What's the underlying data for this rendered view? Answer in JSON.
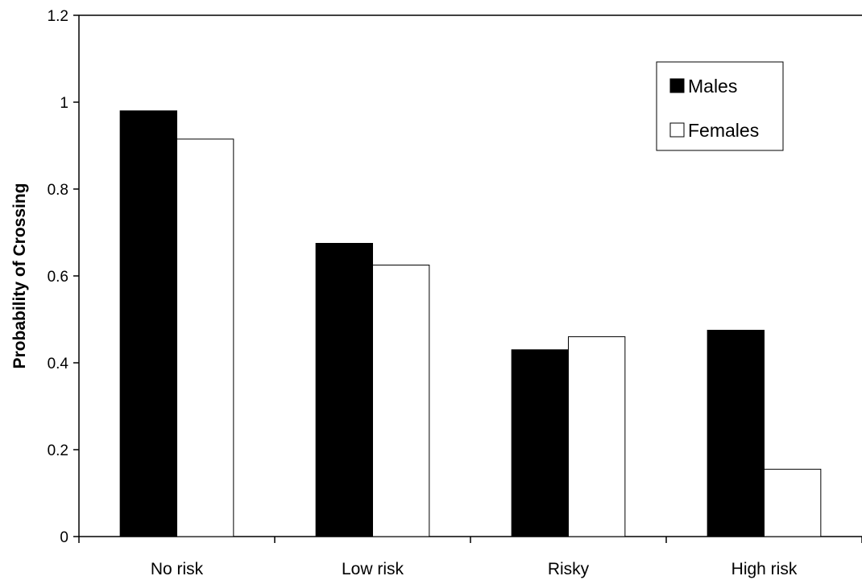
{
  "chart_data": {
    "type": "bar",
    "title": "",
    "xlabel": "",
    "ylabel": "Probability of Crossing",
    "ylim": [
      0,
      1.2
    ],
    "yticks": [
      "0",
      "0.2",
      "0.4",
      "0.6",
      "0.8",
      "1",
      "1.2"
    ],
    "categories": [
      "No risk",
      "Low risk",
      "Risky",
      "High risk"
    ],
    "series": [
      {
        "name": "Males",
        "values": [
          0.98,
          0.675,
          0.43,
          0.475
        ]
      },
      {
        "name": "Females",
        "values": [
          0.915,
          0.625,
          0.46,
          0.155
        ]
      }
    ],
    "grid": false,
    "legend_position": "top-right",
    "colors": {
      "Males": "#000000",
      "Females": "#ffffff",
      "axis": "#000000",
      "background": "#ffffff"
    }
  }
}
